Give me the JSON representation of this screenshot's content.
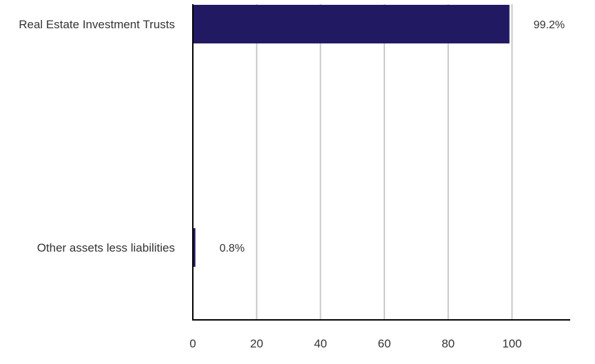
{
  "chart_data": {
    "type": "bar",
    "orientation": "horizontal",
    "categories": [
      "Real Estate Investment Trusts",
      "Other assets less liabilities"
    ],
    "values": [
      99.2,
      0.8
    ],
    "data_labels": [
      "99.2%",
      "0.8%"
    ],
    "xlim": [
      0,
      118
    ],
    "xticks": [
      0,
      20,
      40,
      60,
      80,
      100
    ],
    "xtick_labels": [
      "0",
      "20",
      "40",
      "60",
      "80",
      "100"
    ],
    "title": "",
    "xlabel": "",
    "ylabel": "",
    "grid": "vertical",
    "legend": "none",
    "colors": {
      "bar": "#211a63",
      "grid": "#c8c8c8",
      "axis": "#000000",
      "text": "#333333"
    }
  }
}
